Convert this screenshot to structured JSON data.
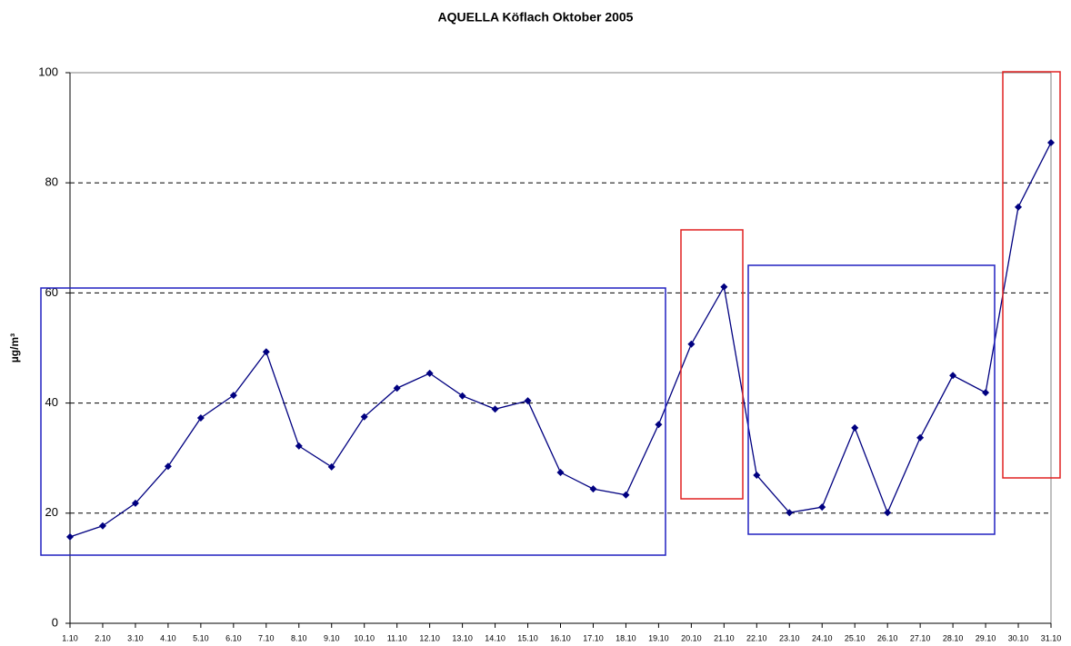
{
  "chart_data": {
    "type": "line",
    "title": "AQUELLA Köflach Oktober 2005",
    "y_label": "µg/m³",
    "categories": [
      "1.10",
      "2.10",
      "3.10",
      "4.10",
      "5.10",
      "6.10",
      "7.10",
      "8.10",
      "9.10",
      "10.10",
      "11.10",
      "12.10",
      "13.10",
      "14.10",
      "15.10",
      "16.10",
      "17.10",
      "18.10",
      "19.10",
      "20.10",
      "21.10",
      "22.10",
      "23.10",
      "24.10",
      "25.10",
      "26.10",
      "27.10",
      "28.10",
      "29.10",
      "30.10",
      "31.10"
    ],
    "values": [
      15.7,
      17.7,
      21.8,
      28.5,
      37.3,
      41.4,
      49.3,
      32.2,
      28.4,
      37.5,
      42.7,
      45.4,
      41.3,
      38.9,
      40.4,
      27.4,
      24.4,
      23.3,
      36.1,
      50.7,
      61.1,
      26.9,
      20.1,
      21.1,
      35.5,
      20.1,
      33.7,
      45.0,
      41.9,
      75.6,
      87.3
    ],
    "color": "#000080",
    "ylim": [
      0,
      100
    ],
    "yticks": [
      0,
      20,
      40,
      60,
      80,
      100
    ],
    "grid": true
  }
}
